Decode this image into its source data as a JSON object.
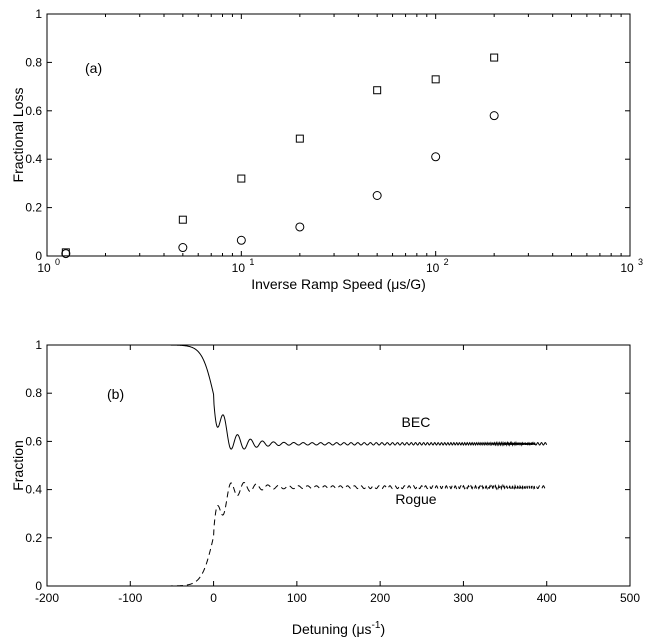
{
  "chart_data": [
    {
      "type": "scatter",
      "panel_label": "(a)",
      "xlabel": "Inverse Ramp Speed (μs/G)",
      "ylabel": "Fractional Loss",
      "xscale": "log",
      "xlim": [
        1,
        1000
      ],
      "ylim": [
        0,
        1
      ],
      "x_tick_bases": [
        "10",
        "10",
        "10",
        "10"
      ],
      "x_tick_exponents": [
        "0",
        "1",
        "2",
        "3"
      ],
      "y_ticks": [
        "0",
        "0.2",
        "0.4",
        "0.6",
        "0.8",
        "1"
      ],
      "grid": false,
      "series": [
        {
          "marker": "square",
          "x": [
            1.25,
            5,
            10,
            20,
            50,
            100,
            200
          ],
          "y": [
            0.015,
            0.15,
            0.32,
            0.485,
            0.685,
            0.73,
            0.82
          ]
        },
        {
          "marker": "circle",
          "x": [
            1.25,
            5,
            10,
            20,
            50,
            100,
            200
          ],
          "y": [
            0.01,
            0.035,
            0.065,
            0.12,
            0.25,
            0.41,
            0.58
          ]
        }
      ]
    },
    {
      "type": "line",
      "panel_label": "(b)",
      "xlabel_main": "Detuning (μs",
      "xlabel_sup": "-1",
      "xlabel_end": ")",
      "ylabel": "Fraction",
      "xlim": [
        -200,
        500
      ],
      "ylim": [
        0,
        1
      ],
      "x_ticks": [
        "-200",
        "-100",
        "0",
        "100",
        "200",
        "300",
        "400",
        "500"
      ],
      "y_ticks": [
        "0",
        "0.2",
        "0.4",
        "0.6",
        "0.8",
        "1"
      ],
      "grid": false,
      "annotations": [
        {
          "text": "BEC",
          "x": 243,
          "y": 0.66
        },
        {
          "text": "Rogue",
          "x": 243,
          "y": 0.34
        }
      ],
      "series": [
        {
          "line_style": "solid",
          "x_range": [
            -200,
            400
          ],
          "final_value": 0.59
        },
        {
          "line_style": "dashed",
          "x_range": [
            -80,
            400
          ],
          "final_value": 0.41
        }
      ]
    }
  ]
}
